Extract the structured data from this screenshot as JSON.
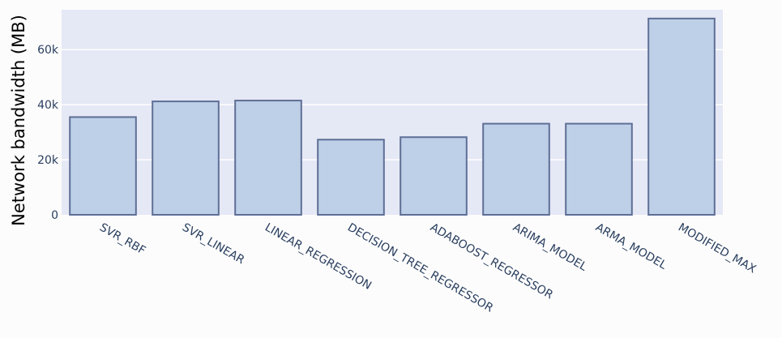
{
  "chart_data": {
    "type": "bar",
    "title": "",
    "xlabel": "",
    "ylabel": "Network bandwidth (MB)",
    "categories": [
      "SVR_RBF",
      "SVR_LINEAR",
      "LINEAR_REGRESSION",
      "DECISION_TREE_REGRESSOR",
      "ADABOOST_REGRESSOR",
      "ARIMA_MODEL",
      "ARMA_MODEL",
      "MODIFIED_MAX"
    ],
    "values": [
      35500,
      41200,
      41500,
      27300,
      28200,
      33100,
      33100,
      71300
    ],
    "ylim": [
      0,
      74500
    ],
    "yticks": [
      0,
      20000,
      40000,
      60000
    ],
    "ytick_labels": [
      "0",
      "20k",
      "40k",
      "60k"
    ],
    "grid": true,
    "colors": {
      "bar_fill": "#bed0e7",
      "bar_stroke": "#5e6e96",
      "plot_bg": "#e5e8f5",
      "paper_bg": "#fcfcfc",
      "grid": "#ffffff"
    }
  }
}
